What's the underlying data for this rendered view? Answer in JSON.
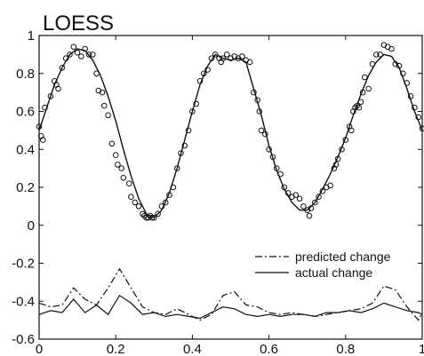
{
  "chart_data": {
    "type": "line",
    "title": "LOESS",
    "xlabel": "",
    "ylabel": "",
    "xlim": [
      0,
      1
    ],
    "ylim": [
      -0.6,
      1
    ],
    "grid": false,
    "legend_position": "lower-right",
    "x_ticks": [
      {
        "value": 0,
        "label": "0"
      },
      {
        "value": 0.2,
        "label": "0.2"
      },
      {
        "value": 0.4,
        "label": "0.4"
      },
      {
        "value": 0.6,
        "label": "0.6"
      },
      {
        "value": 0.8,
        "label": "0.8"
      },
      {
        "value": 1,
        "label": "1"
      }
    ],
    "y_ticks": [
      {
        "value": -0.6,
        "label": "-0.6"
      },
      {
        "value": -0.4,
        "label": "-0.4"
      },
      {
        "value": -0.2,
        "label": "-0.2"
      },
      {
        "value": 0,
        "label": "0"
      },
      {
        "value": 0.2,
        "label": "0.2"
      },
      {
        "value": 0.4,
        "label": "0.4"
      },
      {
        "value": 0.6,
        "label": "0.6"
      },
      {
        "value": 0.8,
        "label": "0.8"
      },
      {
        "value": 1,
        "label": "1"
      }
    ],
    "legend": [
      {
        "label": "predicted change",
        "style": "dash-dot"
      },
      {
        "label": "actual change",
        "style": "solid"
      }
    ],
    "fit": {
      "x": [
        0,
        0.02,
        0.04,
        0.06,
        0.08,
        0.1,
        0.12,
        0.14,
        0.16,
        0.18,
        0.2,
        0.22,
        0.24,
        0.26,
        0.28,
        0.3,
        0.32,
        0.34,
        0.36,
        0.38,
        0.4,
        0.42,
        0.44,
        0.46,
        0.48,
        0.5,
        0.52,
        0.54,
        0.56,
        0.58,
        0.6,
        0.62,
        0.64,
        0.66,
        0.68,
        0.7,
        0.72,
        0.74,
        0.76,
        0.78,
        0.8,
        0.82,
        0.84,
        0.86,
        0.88,
        0.9,
        0.92,
        0.94,
        0.96,
        0.98,
        1
      ],
      "y": [
        0.5,
        0.62,
        0.74,
        0.83,
        0.9,
        0.93,
        0.92,
        0.87,
        0.79,
        0.68,
        0.55,
        0.4,
        0.26,
        0.14,
        0.06,
        0.04,
        0.08,
        0.17,
        0.3,
        0.45,
        0.6,
        0.74,
        0.84,
        0.9,
        0.88,
        0.87,
        0.88,
        0.86,
        0.72,
        0.58,
        0.42,
        0.29,
        0.19,
        0.12,
        0.08,
        0.08,
        0.12,
        0.19,
        0.27,
        0.36,
        0.46,
        0.58,
        0.69,
        0.79,
        0.86,
        0.9,
        0.89,
        0.83,
        0.72,
        0.6,
        0.5
      ]
    },
    "scatter": {
      "x": [
        0.0,
        0.005,
        0.01,
        0.015,
        0.03,
        0.04,
        0.045,
        0.05,
        0.06,
        0.07,
        0.08,
        0.09,
        0.1,
        0.11,
        0.12,
        0.13,
        0.14,
        0.15,
        0.155,
        0.165,
        0.17,
        0.18,
        0.19,
        0.2,
        0.205,
        0.215,
        0.22,
        0.235,
        0.24,
        0.25,
        0.26,
        0.27,
        0.275,
        0.28,
        0.285,
        0.29,
        0.295,
        0.3,
        0.31,
        0.32,
        0.33,
        0.34,
        0.35,
        0.36,
        0.37,
        0.38,
        0.39,
        0.4,
        0.41,
        0.42,
        0.43,
        0.44,
        0.45,
        0.46,
        0.47,
        0.475,
        0.48,
        0.49,
        0.5,
        0.51,
        0.52,
        0.53,
        0.54,
        0.55,
        0.56,
        0.57,
        0.575,
        0.58,
        0.59,
        0.6,
        0.61,
        0.62,
        0.63,
        0.64,
        0.65,
        0.66,
        0.67,
        0.68,
        0.69,
        0.7,
        0.705,
        0.71,
        0.72,
        0.73,
        0.74,
        0.75,
        0.76,
        0.77,
        0.775,
        0.78,
        0.79,
        0.8,
        0.81,
        0.815,
        0.82,
        0.825,
        0.83,
        0.835,
        0.84,
        0.845,
        0.85,
        0.86,
        0.87,
        0.88,
        0.89,
        0.9,
        0.91,
        0.92,
        0.93,
        0.94,
        0.95,
        0.96,
        0.97,
        0.98,
        0.99,
        1.0
      ],
      "y": [
        0.52,
        0.47,
        0.45,
        0.62,
        0.68,
        0.76,
        0.74,
        0.72,
        0.83,
        0.88,
        0.9,
        0.94,
        0.91,
        0.89,
        0.93,
        0.9,
        0.9,
        0.8,
        0.71,
        0.7,
        0.63,
        0.58,
        0.43,
        0.37,
        0.32,
        0.3,
        0.25,
        0.22,
        0.15,
        0.12,
        0.1,
        0.06,
        0.05,
        0.04,
        0.04,
        0.05,
        0.04,
        0.04,
        0.06,
        0.1,
        0.12,
        0.16,
        0.2,
        0.3,
        0.38,
        0.42,
        0.5,
        0.6,
        0.64,
        0.76,
        0.8,
        0.82,
        0.88,
        0.9,
        0.88,
        0.86,
        0.88,
        0.9,
        0.88,
        0.89,
        0.88,
        0.89,
        0.87,
        0.86,
        0.7,
        0.66,
        0.6,
        0.5,
        0.48,
        0.4,
        0.36,
        0.3,
        0.27,
        0.2,
        0.17,
        0.15,
        0.16,
        0.14,
        0.1,
        0.08,
        0.05,
        0.09,
        0.12,
        0.15,
        0.18,
        0.2,
        0.21,
        0.3,
        0.32,
        0.35,
        0.4,
        0.45,
        0.52,
        0.5,
        0.6,
        0.62,
        0.63,
        0.62,
        0.65,
        0.7,
        0.78,
        0.72,
        0.85,
        0.9,
        0.9,
        0.95,
        0.94,
        0.93,
        0.85,
        0.84,
        0.8,
        0.75,
        0.68,
        0.62,
        0.57,
        0.51
      ]
    },
    "predicted_change": {
      "x": [
        0,
        0.03,
        0.06,
        0.09,
        0.12,
        0.15,
        0.18,
        0.21,
        0.24,
        0.27,
        0.3,
        0.33,
        0.36,
        0.39,
        0.42,
        0.45,
        0.48,
        0.51,
        0.54,
        0.57,
        0.6,
        0.63,
        0.66,
        0.69,
        0.72,
        0.75,
        0.78,
        0.81,
        0.84,
        0.87,
        0.9,
        0.93,
        0.96,
        0.99,
        1
      ],
      "y": [
        -0.41,
        -0.43,
        -0.42,
        -0.33,
        -0.39,
        -0.42,
        -0.33,
        -0.23,
        -0.33,
        -0.43,
        -0.46,
        -0.47,
        -0.44,
        -0.47,
        -0.5,
        -0.47,
        -0.37,
        -0.35,
        -0.42,
        -0.43,
        -0.46,
        -0.47,
        -0.46,
        -0.47,
        -0.48,
        -0.47,
        -0.46,
        -0.45,
        -0.44,
        -0.41,
        -0.32,
        -0.34,
        -0.43,
        -0.5,
        -0.46
      ]
    },
    "actual_change": {
      "x": [
        0,
        0.03,
        0.06,
        0.09,
        0.12,
        0.15,
        0.18,
        0.21,
        0.24,
        0.27,
        0.3,
        0.33,
        0.36,
        0.39,
        0.42,
        0.45,
        0.48,
        0.51,
        0.54,
        0.57,
        0.6,
        0.63,
        0.66,
        0.69,
        0.72,
        0.75,
        0.78,
        0.81,
        0.84,
        0.87,
        0.9,
        0.93,
        0.96,
        0.99,
        1
      ],
      "y": [
        -0.47,
        -0.45,
        -0.46,
        -0.39,
        -0.46,
        -0.42,
        -0.47,
        -0.37,
        -0.41,
        -0.47,
        -0.46,
        -0.48,
        -0.47,
        -0.48,
        -0.49,
        -0.46,
        -0.43,
        -0.44,
        -0.47,
        -0.48,
        -0.47,
        -0.48,
        -0.47,
        -0.47,
        -0.48,
        -0.46,
        -0.46,
        -0.45,
        -0.46,
        -0.44,
        -0.41,
        -0.43,
        -0.45,
        -0.46,
        -0.47
      ]
    }
  }
}
